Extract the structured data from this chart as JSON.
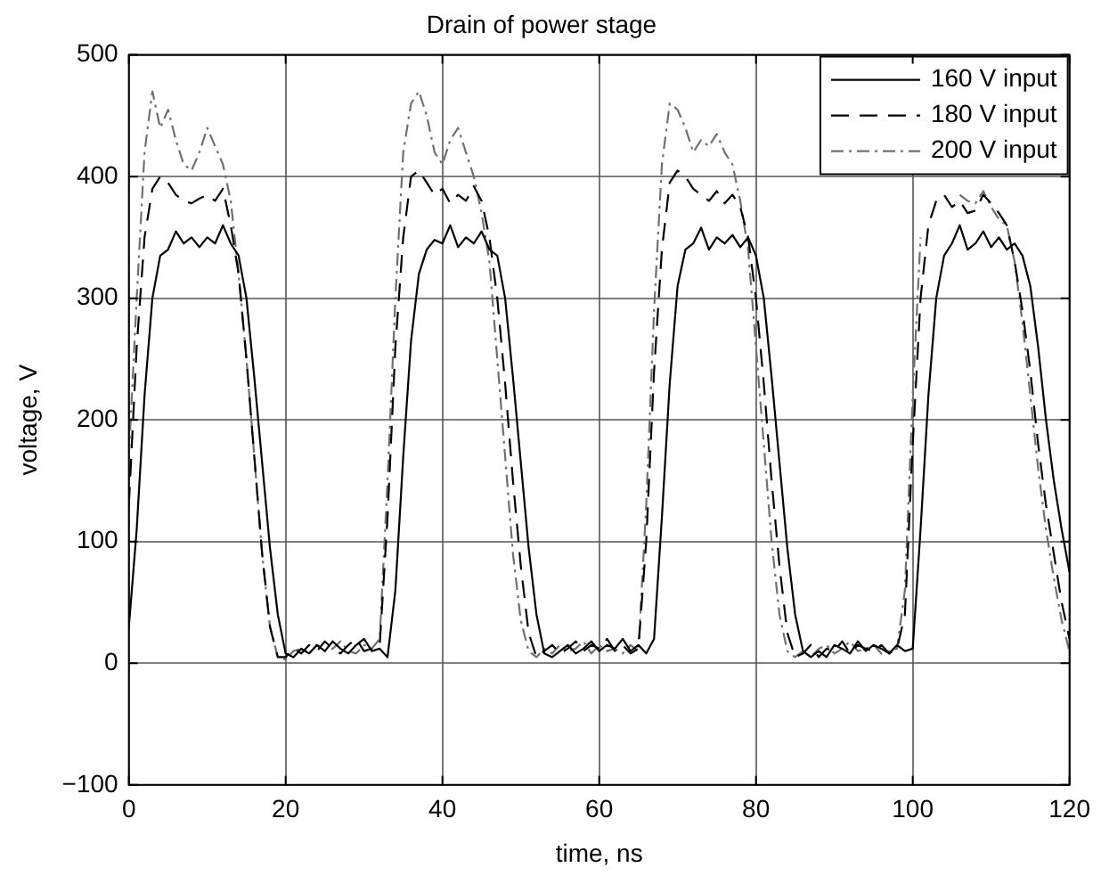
{
  "chart_data": {
    "type": "line",
    "title": "Drain of power stage",
    "xlabel": "time, ns",
    "ylabel": "voltage, V",
    "x": [
      0,
      1,
      2,
      3,
      4,
      5,
      6,
      7,
      8,
      9,
      10,
      11,
      12,
      13,
      14,
      15,
      16,
      17,
      18,
      19,
      20,
      21,
      22,
      23,
      24,
      25,
      26,
      27,
      28,
      29,
      30,
      31,
      32,
      33,
      34,
      35,
      36,
      37,
      38,
      39,
      40,
      41,
      42,
      43,
      44,
      45,
      46,
      47,
      48,
      49,
      50,
      51,
      52,
      53,
      54,
      55,
      56,
      57,
      58,
      59,
      60,
      61,
      62,
      63,
      64,
      65,
      66,
      67,
      68,
      69,
      70,
      71,
      72,
      73,
      74,
      75,
      76,
      77,
      78,
      79,
      80,
      81,
      82,
      83,
      84,
      85,
      86,
      87,
      88,
      89,
      90,
      91,
      92,
      93,
      94,
      95,
      96,
      97,
      98,
      99,
      100,
      101,
      102,
      103,
      104,
      105,
      106,
      107,
      108,
      109,
      110,
      111,
      112,
      113,
      114,
      115,
      116,
      117,
      118,
      119,
      120
    ],
    "series": [
      {
        "name": "160 V input",
        "color": "#000000",
        "line_style": "solid",
        "values": [
          30,
          110,
          220,
          300,
          335,
          340,
          355,
          345,
          350,
          342,
          350,
          345,
          360,
          345,
          335,
          300,
          235,
          165,
          95,
          40,
          8,
          5,
          12,
          8,
          15,
          10,
          18,
          12,
          8,
          15,
          20,
          10,
          12,
          5,
          60,
          170,
          265,
          320,
          340,
          348,
          345,
          360,
          342,
          350,
          345,
          355,
          340,
          335,
          300,
          235,
          165,
          95,
          40,
          8,
          5,
          10,
          15,
          8,
          12,
          18,
          10,
          15,
          12,
          20,
          10,
          15,
          8,
          20,
          120,
          230,
          310,
          340,
          345,
          358,
          340,
          350,
          345,
          352,
          342,
          350,
          335,
          300,
          235,
          165,
          95,
          40,
          10,
          5,
          10,
          5,
          15,
          12,
          8,
          18,
          10,
          15,
          12,
          8,
          15,
          10,
          12,
          110,
          220,
          300,
          335,
          345,
          360,
          340,
          345,
          355,
          342,
          350,
          340,
          345,
          335,
          310,
          260,
          200,
          150,
          110,
          75
        ]
      },
      {
        "name": "180 V input",
        "color": "#000000",
        "line_style": "dashed",
        "values": [
          130,
          260,
          350,
          390,
          400,
          395,
          385,
          380,
          378,
          382,
          385,
          380,
          390,
          360,
          320,
          250,
          170,
          90,
          30,
          5,
          5,
          12,
          8,
          15,
          10,
          18,
          12,
          8,
          15,
          20,
          10,
          12,
          15,
          120,
          260,
          350,
          400,
          405,
          395,
          385,
          390,
          378,
          385,
          380,
          392,
          380,
          350,
          300,
          230,
          150,
          80,
          25,
          5,
          10,
          15,
          8,
          12,
          18,
          10,
          15,
          12,
          20,
          10,
          15,
          8,
          12,
          100,
          240,
          340,
          395,
          405,
          400,
          390,
          385,
          380,
          388,
          378,
          385,
          375,
          350,
          300,
          230,
          150,
          80,
          25,
          5,
          8,
          15,
          5,
          12,
          10,
          18,
          8,
          15,
          12,
          10,
          15,
          8,
          12,
          40,
          180,
          300,
          360,
          380,
          385,
          375,
          380,
          370,
          372,
          385,
          378,
          370,
          360,
          330,
          290,
          240,
          180,
          130,
          90,
          50,
          20
        ]
      },
      {
        "name": "200 V input",
        "color": "#707070",
        "line_style": "dotted",
        "values": [
          170,
          300,
          420,
          470,
          440,
          455,
          430,
          410,
          405,
          420,
          440,
          425,
          410,
          380,
          320,
          250,
          170,
          90,
          30,
          5,
          3,
          10,
          12,
          8,
          15,
          10,
          12,
          18,
          10,
          8,
          15,
          12,
          20,
          150,
          300,
          420,
          460,
          470,
          450,
          420,
          410,
          430,
          440,
          420,
          400,
          370,
          330,
          250,
          170,
          90,
          35,
          10,
          5,
          12,
          8,
          15,
          10,
          12,
          18,
          8,
          15,
          10,
          12,
          8,
          15,
          10,
          130,
          290,
          410,
          460,
          455,
          440,
          420,
          430,
          425,
          435,
          420,
          410,
          380,
          340,
          260,
          180,
          100,
          40,
          10,
          5,
          10,
          5,
          12,
          15,
          8,
          12,
          18,
          10,
          12,
          15,
          8,
          10,
          12,
          60,
          220,
          350,
          null,
          null,
          null,
          null,
          385,
          380,
          378,
          388,
          375,
          365,
          360,
          330,
          280,
          220,
          160,
          110,
          70,
          35,
          10
        ]
      }
    ],
    "xlim": [
      0,
      120
    ],
    "xticks": [
      0,
      20,
      40,
      60,
      80,
      100,
      120
    ],
    "ylim": [
      -100,
      500
    ],
    "yticks": [
      -100,
      0,
      100,
      200,
      300,
      400,
      500
    ],
    "grid": true,
    "legend": "top right",
    "marker": "none"
  }
}
